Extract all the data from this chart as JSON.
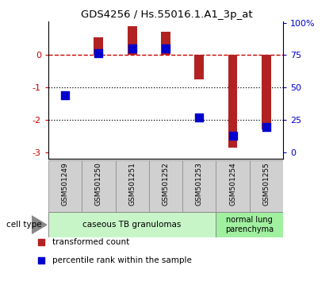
{
  "title": "GDS4256 / Hs.55016.1.A1_3p_at",
  "samples": [
    "GSM501249",
    "GSM501250",
    "GSM501251",
    "GSM501252",
    "GSM501253",
    "GSM501254",
    "GSM501255"
  ],
  "transformed_count": [
    0.02,
    0.55,
    0.9,
    0.72,
    -0.75,
    -2.85,
    -2.3
  ],
  "percentile_rank_scaled": [
    -1.25,
    0.07,
    0.2,
    0.2,
    -1.92,
    -2.48,
    -2.22
  ],
  "bar_color": "#b22222",
  "dot_color": "#0000cc",
  "dashed_color": "#cc0000",
  "ylim": [
    -3.2,
    1.05
  ],
  "group1_label": "caseous TB granulomas",
  "group1_color": "#c8f5c8",
  "group2_label": "normal lung\nparenchyma",
  "group2_color": "#a0f0a0",
  "legend_red": "transformed count",
  "legend_blue": "percentile rank within the sample",
  "bar_width": 0.28,
  "dot_size": 45,
  "background_color": "#ffffff"
}
